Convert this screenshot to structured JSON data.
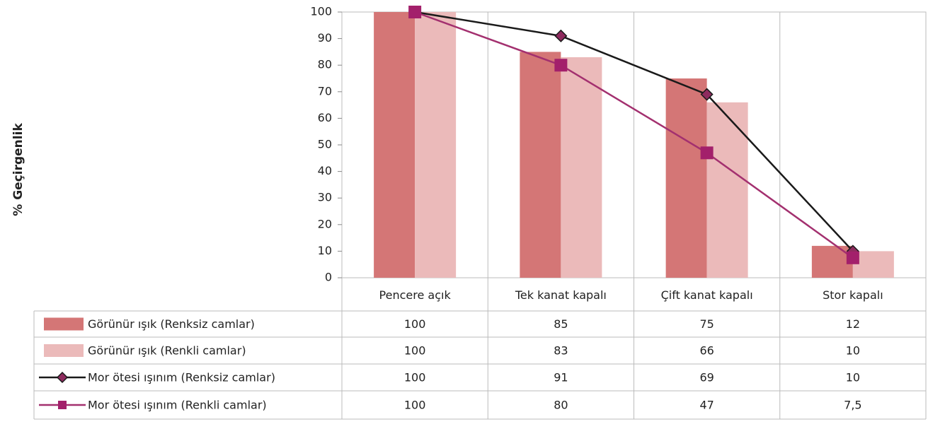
{
  "chart_data": {
    "type": "bar",
    "y_label": "% Geçirgenlik",
    "categories": [
      "Pencere açık",
      "Tek kanat kapalı",
      "Çift kanat kapalı",
      "Stor kapalı"
    ],
    "series": [
      {
        "name": "Görünür ışık (Renksiz camlar)",
        "type": "bar",
        "color": "#d47676",
        "values": [
          100,
          85,
          75,
          12
        ]
      },
      {
        "name": "Görünür ışık (Renkli camlar)",
        "type": "bar",
        "color": "#ebbaba",
        "values": [
          100,
          83,
          66,
          10
        ]
      },
      {
        "name": "Mor ötesi ışınım (Renksiz camlar)",
        "type": "line",
        "marker": "diamond",
        "color": "#1a1a1a",
        "marker_color": "#8e2b5e",
        "values": [
          100,
          91,
          69,
          10
        ]
      },
      {
        "name": "Mor ötesi ışınım (Renkli camlar)",
        "type": "line",
        "marker": "square",
        "color": "#a3306f",
        "marker_color": "#a3206b",
        "values": [
          100,
          80,
          47,
          7.5
        ],
        "value_labels": [
          "100",
          "80",
          "47",
          "7,5"
        ]
      }
    ],
    "ylim": [
      0,
      100
    ],
    "yticks": [
      0,
      10,
      20,
      30,
      40,
      50,
      60,
      70,
      80,
      90,
      100
    ],
    "grid": false
  }
}
